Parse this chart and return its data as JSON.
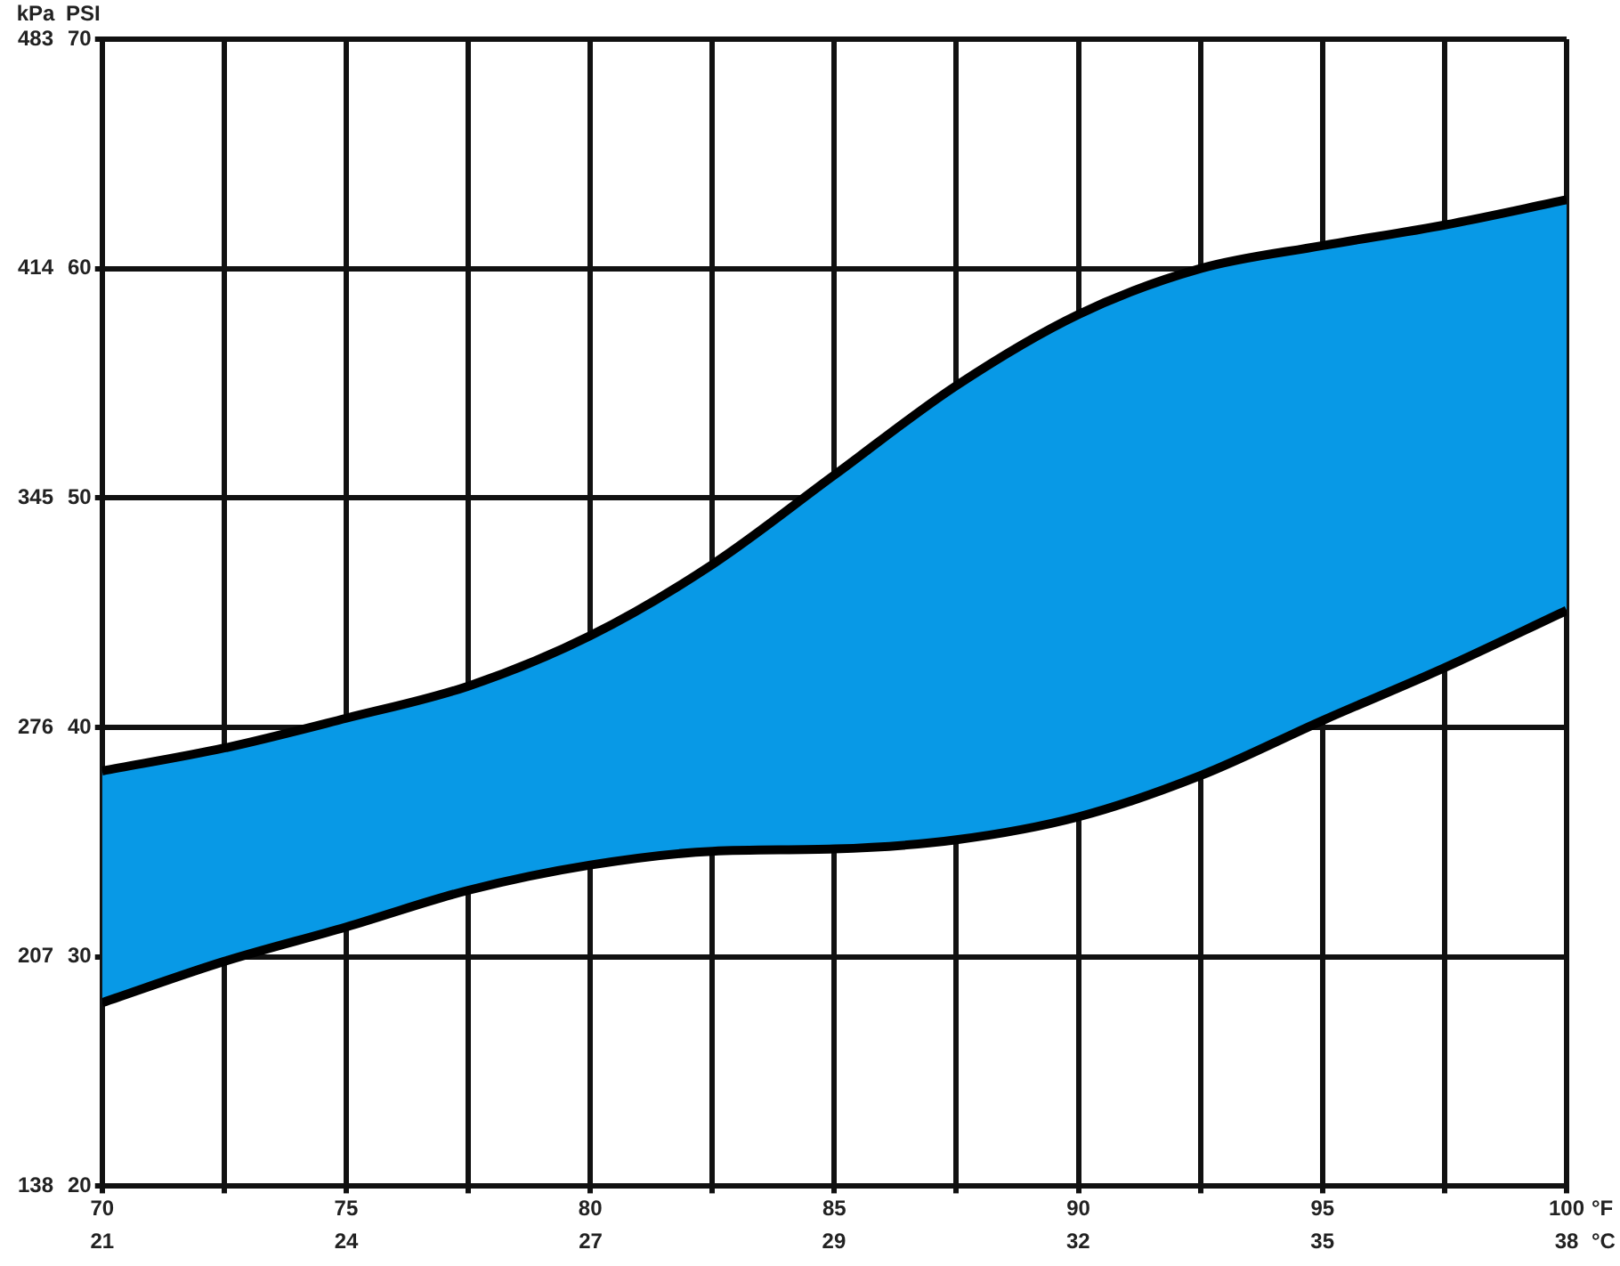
{
  "chart_data": {
    "type": "area",
    "xlabel": "°F",
    "x2label": "°C",
    "ylabel": "PSI",
    "y2label": "kPa",
    "x": [
      70,
      72.5,
      75,
      77.5,
      80,
      82.5,
      85,
      87.5,
      90,
      92.5,
      95,
      97.5,
      100
    ],
    "series": [
      {
        "type": "line",
        "color": "#000000",
        "values": [
          28.0,
          29.8,
          31.3,
          32.9,
          34.0,
          34.6,
          34.7,
          35.1,
          36.1,
          37.9,
          40.3,
          42.6,
          45.1
        ]
      },
      {
        "color": "#0899e6",
        "values": [
          38.1,
          39.1,
          40.4,
          41.8,
          44.0,
          47.1,
          51.0,
          54.9,
          58.0,
          60.0,
          61.0,
          61.9,
          63.0
        ]
      }
    ],
    "xlim": [
      70,
      100
    ],
    "xticks": [
      70,
      {
        "value": 72.5,
        "label": null
      },
      75,
      {
        "value": 77.5,
        "label": null
      },
      80,
      {
        "value": 82.5,
        "label": null
      },
      85,
      {
        "value": 87.5,
        "label": null
      },
      90,
      {
        "value": 92.5,
        "label": null
      },
      95,
      {
        "value": 97.5,
        "label": null
      },
      100
    ],
    "x2lim": [
      21.11,
      37.78
    ],
    "x2ticks": [
      {
        "value": 21.11,
        "label": "21"
      },
      {
        "value": 23.89,
        "label": "24"
      },
      {
        "value": 26.67,
        "label": "27"
      },
      {
        "value": 29.44,
        "label": "29"
      },
      {
        "value": 32.22,
        "label": "32"
      },
      {
        "value": 35,
        "label": "35"
      },
      {
        "value": 37.78,
        "label": "38"
      }
    ],
    "ylim": [
      20,
      70
    ],
    "yticks": [
      20,
      30,
      40,
      50,
      60,
      70
    ],
    "y2lim": [
      137.9,
      482.6
    ],
    "y2ticks": [
      {
        "value": 137.9,
        "label": "138"
      },
      {
        "value": 206.8,
        "label": "207"
      },
      {
        "value": 275.8,
        "label": "276"
      },
      {
        "value": 344.7,
        "label": "345"
      },
      {
        "value": 413.7,
        "label": "414"
      },
      {
        "value": 482.6,
        "label": "483"
      }
    ],
    "grid": true
  }
}
